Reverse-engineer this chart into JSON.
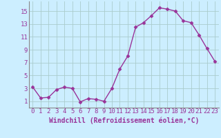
{
  "x": [
    0,
    1,
    2,
    3,
    4,
    5,
    6,
    7,
    8,
    9,
    10,
    11,
    12,
    13,
    14,
    15,
    16,
    17,
    18,
    19,
    20,
    21,
    22,
    23
  ],
  "y": [
    3.2,
    1.5,
    1.6,
    2.8,
    3.2,
    3.0,
    0.9,
    1.4,
    1.3,
    1.0,
    3.0,
    6.0,
    8.0,
    12.5,
    13.2,
    14.3,
    15.5,
    15.3,
    15.0,
    13.5,
    13.2,
    11.3,
    9.2,
    7.2
  ],
  "line_color": "#993399",
  "marker": "D",
  "marker_size": 2.5,
  "bg_color": "#cceeff",
  "grid_color": "#aacccc",
  "xlabel": "Windchill (Refroidissement éolien,°C)",
  "xlabel_fontsize": 7,
  "yticks": [
    1,
    3,
    5,
    7,
    9,
    11,
    13,
    15
  ],
  "ylim": [
    0.0,
    16.5
  ],
  "xlim": [
    -0.5,
    23.5
  ],
  "xticks": [
    0,
    1,
    2,
    3,
    4,
    5,
    6,
    7,
    8,
    9,
    10,
    11,
    12,
    13,
    14,
    15,
    16,
    17,
    18,
    19,
    20,
    21,
    22,
    23
  ],
  "tick_fontsize": 6.5,
  "line_width": 1.0
}
